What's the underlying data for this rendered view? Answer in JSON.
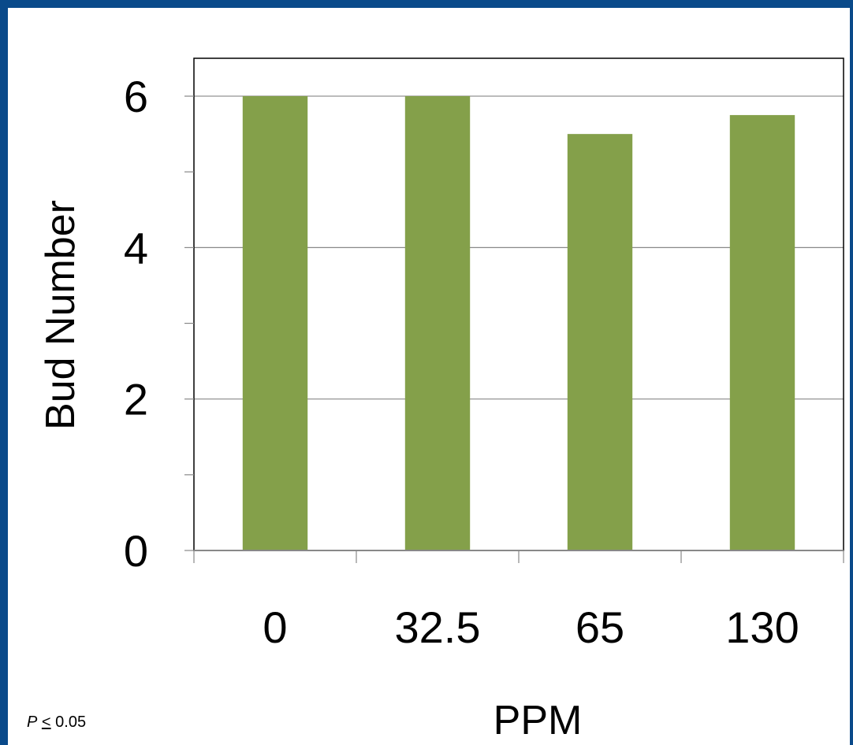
{
  "chart_data": {
    "type": "bar",
    "categories": [
      "0",
      "32.5",
      "65",
      "130"
    ],
    "values": [
      6.0,
      6.0,
      5.5,
      5.75
    ],
    "xlabel": "PPM",
    "ylabel": "Bud Number",
    "ylim": [
      0,
      6.6
    ],
    "yticks": [
      0,
      2,
      4,
      6
    ],
    "ytick_labels": [
      "0",
      "2",
      "4",
      "6"
    ],
    "grid": true,
    "bar_color": "#84a04a"
  },
  "note": {
    "p": "P",
    "le": "<",
    "value": " 0.05"
  },
  "colors": {
    "frame": "#0a4a8a"
  }
}
